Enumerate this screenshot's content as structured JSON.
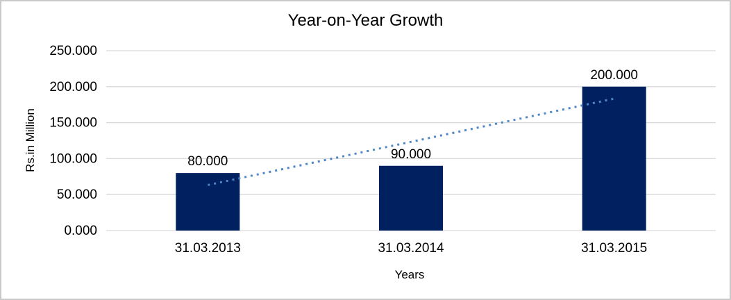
{
  "chart_data": {
    "type": "bar",
    "title": "Year-on-Year Growth",
    "xlabel": "Years",
    "ylabel": "Rs.in Million",
    "categories": [
      "31.03.2013",
      "31.03.2014",
      "31.03.2015"
    ],
    "values": [
      80,
      90,
      200
    ],
    "value_labels": [
      "80.000",
      "90.000",
      "200.000"
    ],
    "ytick_values": [
      0,
      50,
      100,
      150,
      200,
      250
    ],
    "ytick_labels": [
      "0.000",
      "50.000",
      "100.000",
      "150.000",
      "200.000",
      "250.000"
    ],
    "ylim": [
      0,
      250
    ],
    "grid": true,
    "legend": "none",
    "trendline": {
      "type": "linear",
      "style": "dotted",
      "start_value": 63.3,
      "end_value": 183.3,
      "color": "#4f86c6"
    },
    "colors": {
      "bar": "#002060",
      "gridline": "#d9d9d9",
      "text": "#000000",
      "frame_border": "#c9c9c9"
    }
  }
}
